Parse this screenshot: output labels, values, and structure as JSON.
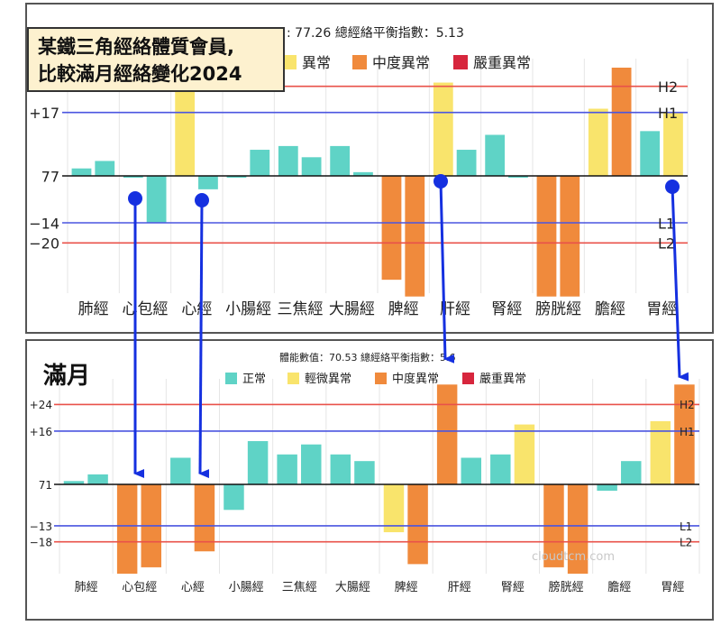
{
  "callout": {
    "line1": "某鐵三角經絡體質會員,",
    "line2": "比較滿月經絡變化2024"
  },
  "bottom_caption": "滿月",
  "watermark": "cloudtcm.com",
  "colors": {
    "normal": "#5fd3c6",
    "mild": "#f9e46c",
    "moderate": "#f08a3c",
    "severe": "#d7263d",
    "h_line": "#e9524a",
    "h1_line": "#4a55e0",
    "arrow": "#1530e0"
  },
  "chart_data": [
    {
      "type": "bar",
      "stats_text": ": 77.26  總經絡平衡指數：5.13",
      "legend": [
        {
          "label": "異常",
          "status": "mild"
        },
        {
          "label": "中度異常",
          "status": "moderate"
        },
        {
          "label": "嚴重異常",
          "status": "severe"
        }
      ],
      "baseline_label": "77",
      "ref_lines": [
        {
          "name": "H2",
          "value": 24,
          "tick": "",
          "color_key": "h_line"
        },
        {
          "name": "H1",
          "value": 17,
          "tick": "+17",
          "color_key": "h1_line"
        },
        {
          "name": "L1",
          "value": -14,
          "tick": "−14",
          "color_key": "h1_line"
        },
        {
          "name": "L2",
          "value": -20,
          "tick": "−20",
          "color_key": "h_line"
        }
      ],
      "ylim": [
        -35,
        29
      ],
      "categories": [
        "肺經",
        "心包經",
        "心經",
        "小腸經",
        "三焦經",
        "大腸經",
        "脾經",
        "肝經",
        "腎經",
        "膀胱經",
        "膽經",
        "胃經"
      ],
      "bars": [
        [
          {
            "value": 2,
            "status": "normal"
          },
          {
            "value": 4,
            "status": "normal"
          }
        ],
        [
          {
            "value": 0,
            "status": "normal"
          },
          {
            "value": -14,
            "status": "normal"
          }
        ],
        [
          {
            "value": 24,
            "status": "mild"
          },
          {
            "value": -4,
            "status": "normal"
          }
        ],
        [
          {
            "value": 0,
            "status": "normal"
          },
          {
            "value": 7,
            "status": "normal"
          }
        ],
        [
          {
            "value": 8,
            "status": "normal"
          },
          {
            "value": 5,
            "status": "normal"
          }
        ],
        [
          {
            "value": 8,
            "status": "normal"
          },
          {
            "value": 1,
            "status": "normal"
          }
        ],
        [
          {
            "value": -31,
            "status": "moderate"
          },
          {
            "value": -36,
            "status": "moderate"
          }
        ],
        [
          {
            "value": 25,
            "status": "mild"
          },
          {
            "value": 7,
            "status": "normal"
          }
        ],
        [
          {
            "value": 11,
            "status": "normal"
          },
          {
            "value": 0,
            "status": "normal"
          }
        ],
        [
          {
            "value": -36,
            "status": "moderate"
          },
          {
            "value": -36,
            "status": "moderate"
          }
        ],
        [
          {
            "value": 18,
            "status": "mild"
          },
          {
            "value": 29,
            "status": "moderate"
          }
        ],
        [
          {
            "value": 12,
            "status": "normal"
          },
          {
            "value": 17,
            "status": "mild"
          }
        ]
      ]
    },
    {
      "type": "bar",
      "stats_text": "體能數值：70.53  總經絡平衡指數：5.6",
      "legend": [
        {
          "label": "正常",
          "status": "normal"
        },
        {
          "label": "輕微異常",
          "status": "mild"
        },
        {
          "label": "中度異常",
          "status": "moderate"
        },
        {
          "label": "嚴重異常",
          "status": "severe"
        }
      ],
      "baseline_label": "71",
      "ref_lines": [
        {
          "name": "H2",
          "value": 24,
          "tick": "+24",
          "color_key": "h_line"
        },
        {
          "name": "H1",
          "value": 16,
          "tick": "+16",
          "color_key": "h1_line"
        },
        {
          "name": "L1",
          "value": -13,
          "tick": "−13",
          "color_key": "h1_line"
        },
        {
          "name": "L2",
          "value": -18,
          "tick": "−18",
          "color_key": "h_line"
        }
      ],
      "ylim": [
        -28,
        29
      ],
      "categories": [
        "肺經",
        "心包經",
        "心經",
        "小腸經",
        "三焦經",
        "大腸經",
        "脾經",
        "肝經",
        "腎經",
        "膀胱經",
        "膽經",
        "胃經"
      ],
      "bars": [
        [
          {
            "value": 1,
            "status": "normal"
          },
          {
            "value": 3,
            "status": "normal"
          }
        ],
        [
          {
            "value": -28,
            "status": "moderate"
          },
          {
            "value": -26,
            "status": "moderate"
          }
        ],
        [
          {
            "value": 8,
            "status": "normal"
          },
          {
            "value": -21,
            "status": "moderate"
          }
        ],
        [
          {
            "value": -8,
            "status": "normal"
          },
          {
            "value": 13,
            "status": "normal"
          }
        ],
        [
          {
            "value": 9,
            "status": "normal"
          },
          {
            "value": 12,
            "status": "normal"
          }
        ],
        [
          {
            "value": 9,
            "status": "normal"
          },
          {
            "value": 7,
            "status": "normal"
          }
        ],
        [
          {
            "value": -15,
            "status": "mild"
          },
          {
            "value": -25,
            "status": "moderate"
          }
        ],
        [
          {
            "value": 30,
            "status": "moderate"
          },
          {
            "value": 8,
            "status": "normal"
          }
        ],
        [
          {
            "value": 9,
            "status": "normal"
          },
          {
            "value": 18,
            "status": "mild"
          }
        ],
        [
          {
            "value": -26,
            "status": "moderate"
          },
          {
            "value": -28,
            "status": "moderate"
          }
        ],
        [
          {
            "value": -2,
            "status": "normal"
          },
          {
            "value": 7,
            "status": "normal"
          }
        ],
        [
          {
            "value": 19,
            "status": "mild"
          },
          {
            "value": 30,
            "status": "moderate"
          }
        ]
      ]
    }
  ]
}
